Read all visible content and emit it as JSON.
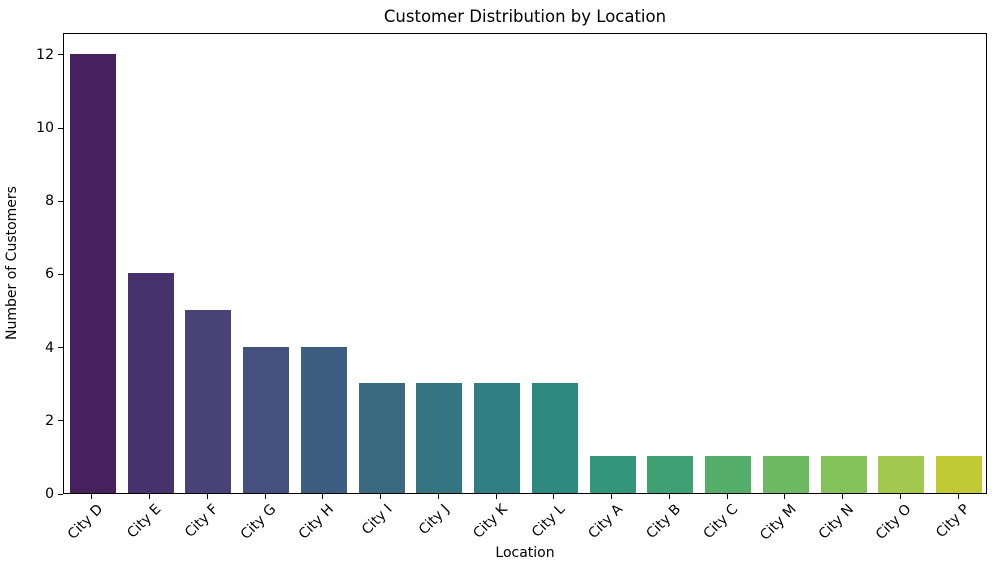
{
  "chart_data": {
    "type": "bar",
    "title": "Customer Distribution by Location",
    "xlabel": "Location",
    "ylabel": "Number of Customers",
    "categories": [
      "City D",
      "City E",
      "City F",
      "City G",
      "City H",
      "City I",
      "City J",
      "City K",
      "City L",
      "City A",
      "City B",
      "City C",
      "City M",
      "City N",
      "City O",
      "City P"
    ],
    "values": [
      12,
      6,
      5,
      4,
      4,
      3,
      3,
      3,
      3,
      1,
      1,
      1,
      1,
      1,
      1,
      1
    ],
    "bar_colors": [
      "#46215e",
      "#48326e",
      "#484277",
      "#44507d",
      "#3e5e81",
      "#396a82",
      "#347582",
      "#2f7f82",
      "#2e8a80",
      "#33957a",
      "#3fa173",
      "#55ad6a",
      "#6db962",
      "#86c25a",
      "#a2c84d",
      "#bfca34"
    ],
    "yticks": [
      0,
      2,
      4,
      6,
      8,
      10,
      12
    ],
    "ylim": [
      0,
      12.6
    ],
    "x_tick_rotation_deg": 45,
    "grid": false,
    "legend": "none",
    "axis_color": "#000000",
    "background_color": "#ffffff"
  }
}
